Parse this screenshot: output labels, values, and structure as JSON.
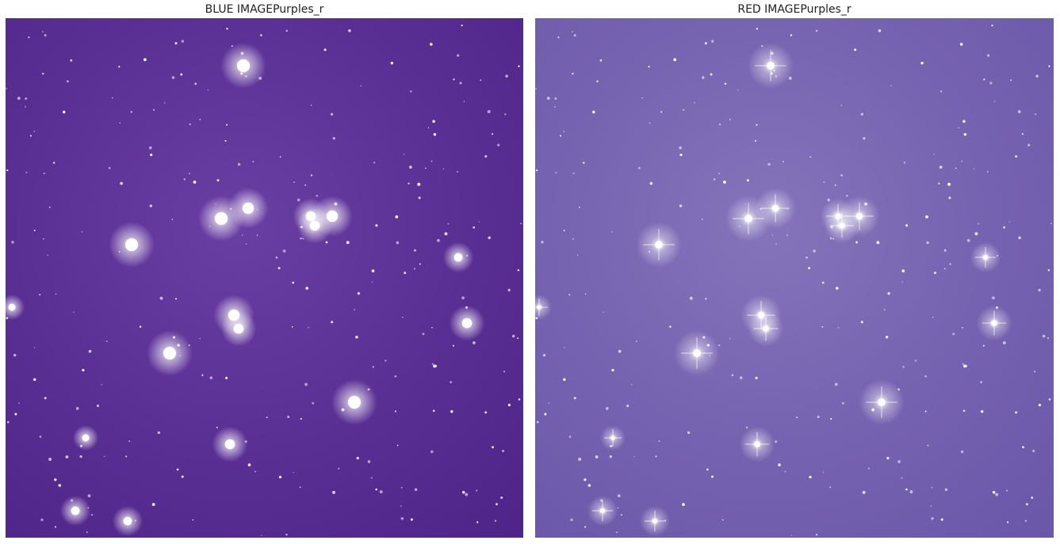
{
  "panels": [
    {
      "id": "blue",
      "title": "BLUE IMAGEPurples_r",
      "colormap": "Purples_r",
      "background_colors": [
        "#6a3fa3",
        "#5a2f94",
        "#4f2488"
      ],
      "star_color": "#ffffff"
    },
    {
      "id": "red",
      "title": "RED IMAGEPurples_r",
      "colormap": "Purples_r",
      "background_colors": [
        "#8574bb",
        "#7562b0",
        "#6b57a8"
      ],
      "star_color": "#ffffff"
    }
  ]
}
